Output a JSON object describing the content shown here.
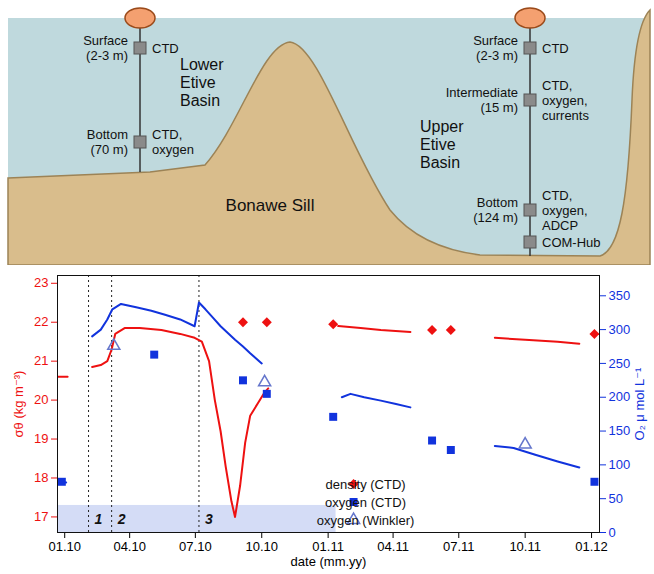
{
  "diagram": {
    "basins": [
      "Lower Etive Basin",
      "Upper Etive Basin"
    ],
    "sill": "Bonawe Sill",
    "moorings": [
      {
        "instruments": [
          {
            "depth": "Surface (2-3 m)",
            "sensors": [
              "CTD"
            ]
          },
          {
            "depth": "Bottom (70 m)",
            "sensors": [
              "CTD, oxygen"
            ]
          }
        ]
      },
      {
        "instruments": [
          {
            "depth": "Surface (2-3 m)",
            "sensors": [
              "CTD"
            ]
          },
          {
            "depth": "Intermediate (15 m)",
            "sensors": [
              "CTD, oxygen, currents"
            ]
          },
          {
            "depth": "Bottom (124 m)",
            "sensors": [
              "CTD, oxygen, ADCP",
              "COM-Hub"
            ]
          }
        ]
      }
    ]
  },
  "chart_data": {
    "type": "scatter",
    "x_label": "date (mm.yy)",
    "y_label": "σθ (kg m⁻³)",
    "y2_label": "O₂ μ mol L⁻¹",
    "xlim": [
      "2009-12-22",
      "2012-01-12"
    ],
    "xticks": [
      {
        "value": "2010-01-01",
        "label": "01.10"
      },
      {
        "value": "2010-04-01",
        "label": "04.10"
      },
      {
        "value": "2010-07-01",
        "label": "07.10"
      },
      {
        "value": "2010-10-01",
        "label": "10.10"
      },
      {
        "value": "2011-01-01",
        "label": "01.11"
      },
      {
        "value": "2011-04-01",
        "label": "04.11"
      },
      {
        "value": "2011-07-01",
        "label": "07.11"
      },
      {
        "value": "2011-10-01",
        "label": "10.11"
      },
      {
        "value": "2012-01-01",
        "label": "01.12"
      }
    ],
    "ylim": [
      16.6,
      23.2
    ],
    "yticks": [
      17,
      18,
      19,
      20,
      21,
      22,
      23
    ],
    "y2lim": [
      0,
      380
    ],
    "y2ticks": [
      0,
      50,
      100,
      150,
      200,
      250,
      300,
      350
    ],
    "legend": "bottom",
    "band": {
      "x": [
        "2009-12-22",
        "2011-01-12"
      ],
      "y2": [
        0,
        40
      ],
      "color": "#d4dcf6"
    },
    "events": [
      {
        "x": "2010-02-03",
        "label": "1"
      },
      {
        "x": "2010-03-07",
        "label": "2"
      },
      {
        "x": "2010-07-06",
        "label": "3"
      }
    ],
    "series": [
      {
        "type": "line",
        "color": "#ee1111",
        "x": [
          "2009-12-22",
          "2010-01-05",
          null,
          "2010-02-08",
          "2010-02-20",
          "2010-03-01",
          "2010-03-07",
          "2010-03-12",
          "2010-03-25",
          "2010-04-15",
          "2010-05-15",
          "2010-06-10",
          "2010-06-30",
          "2010-07-10",
          "2010-07-20",
          "2010-07-28",
          "2010-08-05",
          "2010-08-12",
          "2010-08-20",
          "2010-08-25",
          "2010-09-01",
          "2010-09-08",
          "2010-09-15",
          "2010-09-25",
          "2010-10-05",
          "2010-10-10",
          null,
          "2011-01-15",
          "2011-02-15",
          "2011-03-15",
          "2011-04-25",
          null,
          "2011-08-20",
          "2011-10-01",
          "2011-11-15",
          "2011-12-15"
        ],
        "values": [
          20.6,
          20.6,
          null,
          20.85,
          20.9,
          21.0,
          21.3,
          21.7,
          21.85,
          21.85,
          21.8,
          21.7,
          21.6,
          21.5,
          21.0,
          20.0,
          19.2,
          18.3,
          17.4,
          17.0,
          17.8,
          18.9,
          19.6,
          19.9,
          20.2,
          20.3,
          null,
          21.9,
          21.85,
          21.8,
          21.75,
          null,
          21.6,
          21.55,
          21.5,
          21.45
        ]
      },
      {
        "type": "line",
        "color": "#1133dd",
        "axis": "y2",
        "x": [
          "2009-12-22",
          "2010-01-03",
          null,
          "2010-02-08",
          "2010-02-20",
          "2010-03-01",
          "2010-03-08",
          "2010-03-20",
          "2010-04-10",
          "2010-05-01",
          "2010-05-20",
          "2010-06-10",
          "2010-06-30",
          "2010-07-06",
          "2010-07-15",
          "2010-07-25",
          "2010-08-05",
          "2010-08-15",
          "2010-08-25",
          "2010-09-05",
          "2010-09-15",
          "2010-10-01",
          null,
          "2011-01-20",
          "2011-02-01",
          "2011-02-20",
          "2011-03-15",
          "2011-04-05",
          "2011-04-25",
          null,
          "2011-08-20",
          "2011-09-15",
          "2011-10-15",
          "2011-11-15",
          "2011-12-15"
        ],
        "values": [
          76,
          74,
          null,
          290,
          300,
          315,
          330,
          338,
          333,
          328,
          322,
          315,
          305,
          340,
          330,
          318,
          305,
          295,
          285,
          275,
          265,
          250,
          null,
          200,
          205,
          200,
          195,
          190,
          185,
          null,
          128,
          125,
          115,
          105,
          96
        ]
      },
      {
        "name": "density (CTD)",
        "type": "scatter",
        "marker": "diamond",
        "color": "#ee1111",
        "x": [
          "2010-09-05",
          "2010-10-08",
          "2011-01-08",
          "2011-05-25",
          "2011-06-20",
          "2012-01-05"
        ],
        "values": [
          22.0,
          22.0,
          21.95,
          21.8,
          21.8,
          21.7
        ]
      },
      {
        "name": "oxygen (CTD)",
        "type": "scatter",
        "marker": "square",
        "color": "#1133dd",
        "axis": "y2",
        "x": [
          "2009-12-28",
          "2010-05-05",
          "2010-09-05",
          "2010-10-08",
          "2011-01-08",
          "2011-05-25",
          "2011-06-20",
          "2012-01-05"
        ],
        "values": [
          75,
          263,
          225,
          205,
          171,
          136,
          122,
          75
        ]
      },
      {
        "name": "oxygen (Winkler)",
        "type": "scatter",
        "marker": "triangle-open",
        "color": "#6677cc",
        "axis": "y2",
        "x": [
          "2010-03-10",
          "2010-10-05",
          "2011-10-01"
        ],
        "values": [
          276,
          222,
          130
        ]
      }
    ]
  }
}
